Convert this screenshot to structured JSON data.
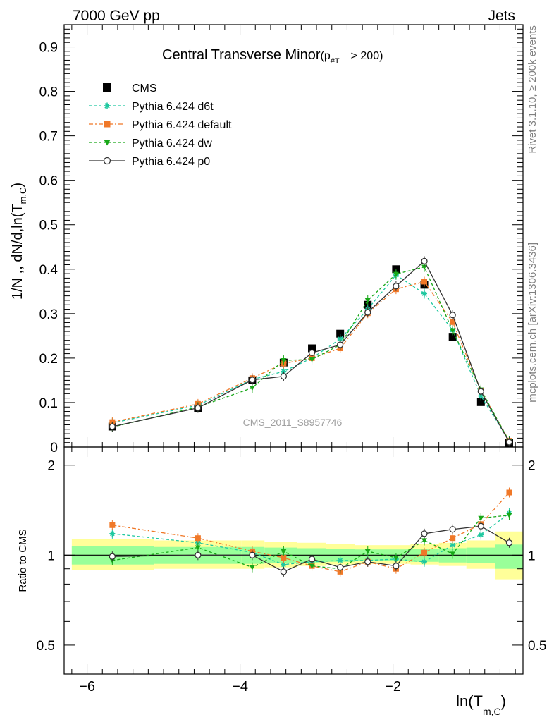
{
  "header": {
    "left": "7000 GeV pp",
    "right": "Jets"
  },
  "side_labels": {
    "rivet": "Rivet 3.1.10, ≥ 200k events",
    "mcplots": "mcplots.cern.ch [arXiv:1306.3436]"
  },
  "chart_data": {
    "type": "line",
    "title": "Central Transverse Minor",
    "title_cut": "(p",
    "title_cut_sub": "#T",
    "title_cut_tail": "> 200)",
    "watermark": "CMS_2011_S8957746",
    "ylabel_main": "1/N ,, dN/d,ln(T",
    "ylabel_main_sub": "m,C",
    "ylabel_main_tail": ")",
    "ylabel_ratio": "Ratio to CMS",
    "xlabel": "ln(T",
    "xlabel_sub": "m,C",
    "xlabel_tail": ")",
    "xlim": [
      -6.3,
      -0.3
    ],
    "ylim_main": [
      0,
      0.95
    ],
    "ylim_ratio_log": [
      0.4,
      2.3
    ],
    "xticks": [
      -6,
      -4,
      -2
    ],
    "xtick_labels": [
      "−6",
      "−4",
      "−2"
    ],
    "yticks_main": [
      0,
      0.1,
      0.2,
      0.3,
      0.4,
      0.5,
      0.6,
      0.7,
      0.8,
      0.9
    ],
    "ytick_labels_main": [
      "0",
      "0.1",
      "0.2",
      "0.3",
      "0.4",
      "0.5",
      "0.6",
      "0.7",
      "0.8",
      "0.9"
    ],
    "yticks_ratio": [
      0.5,
      1,
      2
    ],
    "ytick_labels_ratio": [
      "0.5",
      "1",
      "2"
    ],
    "legend_position": "top-left",
    "x": [
      -5.67,
      -4.55,
      -3.84,
      -3.43,
      -3.06,
      -2.69,
      -2.33,
      -1.96,
      -1.59,
      -1.22,
      -0.85,
      -0.48
    ],
    "band_edges": [
      -6.2,
      -5.12,
      -3.98,
      -3.68,
      -3.25,
      -2.88,
      -2.5,
      -2.16,
      -1.77,
      -1.4,
      -1.04,
      -0.66,
      -0.3
    ],
    "band_green": [
      0.07,
      0.065,
      0.065,
      0.06,
      0.055,
      0.05,
      0.045,
      0.045,
      0.05,
      0.055,
      0.06,
      0.085
    ],
    "band_yellow": [
      0.13,
      0.12,
      0.12,
      0.11,
      0.1,
      0.09,
      0.08,
      0.08,
      0.09,
      0.1,
      0.12,
      0.2
    ],
    "band_green_lo": [
      0.07,
      0.065,
      0.065,
      0.06,
      0.055,
      0.05,
      0.045,
      0.045,
      0.05,
      0.055,
      0.06,
      0.1
    ],
    "band_yellow_lo": [
      0.11,
      0.1,
      0.1,
      0.09,
      0.08,
      0.07,
      0.065,
      0.065,
      0.07,
      0.08,
      0.1,
      0.17
    ],
    "series": [
      {
        "name": "CMS",
        "color": "#000000",
        "marker": "square",
        "values": [
          0.046,
          0.087,
          0.15,
          0.19,
          0.222,
          0.255,
          0.32,
          0.4,
          0.365,
          0.248,
          0.101,
          0.009
        ],
        "ratio": [
          1,
          1,
          1,
          1,
          1,
          1,
          1,
          1,
          1,
          1,
          1,
          1
        ]
      },
      {
        "name": "Pythia 6.424 d6t",
        "color": "#1fc8a0",
        "marker": "star",
        "dash": "4,3",
        "values": [
          0.054,
          0.094,
          0.152,
          0.17,
          0.2,
          0.243,
          0.31,
          0.387,
          0.345,
          0.263,
          0.115,
          0.013
        ],
        "ratio": [
          1.18,
          1.1,
          1.02,
          0.93,
          0.95,
          0.96,
          0.96,
          0.97,
          0.95,
          1.08,
          1.17,
          1.38
        ]
      },
      {
        "name": "Pythia 6.424 default",
        "color": "#f07828",
        "marker": "square",
        "dash": "6,3,2,3",
        "values": [
          0.056,
          0.097,
          0.155,
          0.188,
          0.2,
          0.222,
          0.301,
          0.355,
          0.372,
          0.281,
          0.127,
          0.014
        ],
        "ratio": [
          1.26,
          1.14,
          1.03,
          0.98,
          0.92,
          0.88,
          0.95,
          0.9,
          1.02,
          1.14,
          1.27,
          1.62
        ]
      },
      {
        "name": "Pythia 6.424 dw",
        "color": "#18a818",
        "marker": "triangle-down",
        "dash": "4,3",
        "values": [
          0.045,
          0.09,
          0.133,
          0.195,
          0.197,
          0.23,
          0.33,
          0.389,
          0.405,
          0.262,
          0.129,
          0.013
        ],
        "ratio": [
          0.96,
          1.06,
          0.91,
          1.03,
          0.92,
          0.9,
          1.03,
          0.98,
          1.12,
          1.01,
          1.33,
          1.36
        ]
      },
      {
        "name": "Pythia 6.424 p0",
        "color": "#333333",
        "marker": "circle-open",
        "values": [
          0.046,
          0.088,
          0.151,
          0.159,
          0.212,
          0.23,
          0.303,
          0.362,
          0.418,
          0.297,
          0.125,
          0.011
        ],
        "ratio": [
          0.99,
          1.0,
          1.0,
          0.88,
          0.97,
          0.91,
          0.95,
          0.92,
          1.18,
          1.22,
          1.25,
          1.1
        ]
      }
    ]
  }
}
